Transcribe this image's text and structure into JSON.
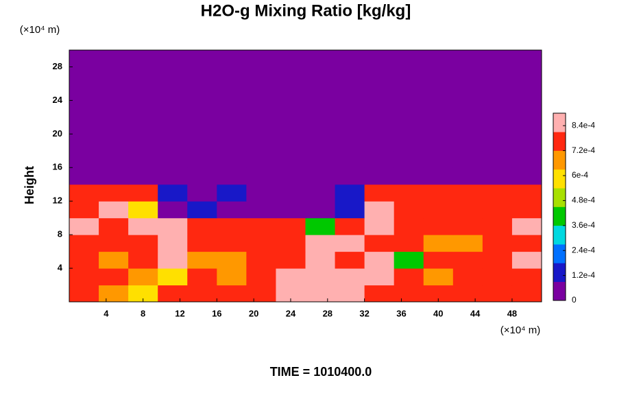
{
  "chart_data": {
    "type": "heatmap",
    "title": "H2O-g Mixing Ratio [kg/kg]",
    "ylabel": "Height",
    "yunit": "(×10⁴ m)",
    "xunit": "(×10⁴ m)",
    "footer": "TIME = 1010400.0",
    "x": [
      1.6,
      4.8,
      8,
      11.2,
      14.4,
      17.6,
      20.8,
      24,
      27.2,
      30.4,
      33.6,
      36.8,
      40,
      43.2,
      46.4,
      49.6
    ],
    "y": [
      1,
      3,
      5,
      7,
      9,
      11,
      13,
      15,
      17,
      19,
      21,
      23,
      25,
      27,
      29
    ],
    "z": [
      [
        0.0008,
        0.0007,
        0.0006,
        0.0008,
        0.0008,
        0.0008,
        0.0008,
        0.0009,
        0.0009,
        0.0009,
        0.0008,
        0.0008,
        0.0008,
        0.0008,
        0.0008,
        0.0008
      ],
      [
        0.0008,
        0.00075,
        0.0007,
        0.0006,
        0.0008,
        0.00065,
        0.0008,
        0.0009,
        0.0009,
        0.0009,
        0.00085,
        0.0008,
        0.0007,
        0.0008,
        0.00075,
        0.0008
      ],
      [
        0.00075,
        0.0007,
        0.00075,
        0.0009,
        0.0007,
        0.00065,
        0.0008,
        0.0008,
        0.0009,
        0.0008,
        0.0009,
        0.0004,
        0.0008,
        0.00075,
        0.0008,
        0.0009
      ],
      [
        0.0008,
        0.00075,
        0.0008,
        0.0009,
        0.0008,
        0.00075,
        0.0008,
        0.0008,
        0.0009,
        0.0009,
        0.0008,
        0.0008,
        0.0007,
        0.0007,
        0.0008,
        0.0008
      ],
      [
        0.00085,
        0.0008,
        0.0009,
        0.0009,
        0.0008,
        0.0008,
        0.0008,
        0.00075,
        0.0004,
        0.0008,
        0.0009,
        0.0008,
        0.00075,
        0.0008,
        0.0008,
        0.0009
      ],
      [
        0.0008,
        0.00085,
        0.0006,
        8e-05,
        0.0001,
        8e-05,
        5e-05,
        5e-05,
        5e-05,
        0.00015,
        0.0009,
        0.0008,
        0.0008,
        0.00078,
        0.0008,
        0.0008
      ],
      [
        0.0008,
        0.0008,
        0.0008,
        0.0001,
        5e-05,
        0.0001,
        8e-05,
        5e-05,
        8e-05,
        0.0001,
        0.0008,
        0.0008,
        0.0008,
        0.0008,
        0.0008,
        0.0008
      ],
      [
        0,
        0,
        0,
        0,
        0,
        0,
        0,
        0,
        0,
        0,
        0,
        0,
        0,
        0,
        0,
        0
      ],
      [
        0,
        0,
        0,
        0,
        0,
        0,
        0,
        0,
        0,
        0,
        0,
        0,
        0,
        0,
        0,
        0
      ],
      [
        0,
        0,
        0,
        0,
        0,
        0,
        0,
        0,
        0,
        0,
        0,
        0,
        0,
        0,
        0,
        0
      ],
      [
        0,
        0,
        0,
        0,
        0,
        0,
        0,
        0,
        0,
        0,
        0,
        0,
        0,
        0,
        0,
        0
      ],
      [
        0,
        0,
        0,
        0,
        0,
        0,
        0,
        0,
        0,
        0,
        0,
        0,
        0,
        0,
        0,
        0
      ],
      [
        0,
        0,
        0,
        0,
        0,
        0,
        0,
        0,
        0,
        0,
        0,
        0,
        0,
        0,
        0,
        0
      ],
      [
        0,
        0,
        0,
        0,
        0,
        0,
        0,
        0,
        0,
        0,
        0,
        0,
        0,
        0,
        0,
        0
      ],
      [
        0,
        0,
        0,
        0,
        0,
        0,
        0,
        0,
        0,
        0,
        0,
        0,
        0,
        0,
        0,
        0
      ]
    ],
    "xlim": [
      0,
      51.2
    ],
    "ylim": [
      0,
      30
    ],
    "xticks": [
      4,
      8,
      12,
      16,
      20,
      24,
      28,
      32,
      36,
      40,
      44,
      48
    ],
    "yticks": [
      4,
      8,
      12,
      16,
      20,
      24,
      28
    ],
    "clim": [
      0,
      0.0009
    ],
    "cticks": [
      0,
      {
        "value": 0.00012,
        "label": "1.2e-4"
      },
      {
        "value": 0.00024,
        "label": "2.4e-4"
      },
      {
        "value": 0.00036,
        "label": "3.6e-4"
      },
      {
        "value": 0.00048,
        "label": "4.8e-4"
      },
      {
        "value": 0.0006,
        "label": "6e-4"
      },
      {
        "value": 0.00072,
        "label": "7.2e-4"
      },
      {
        "value": 0.00084,
        "label": "8.4e-4"
      }
    ],
    "colormap": [
      "#7a00a0",
      "#1818c8",
      "#0070ff",
      "#00d8e0",
      "#00c800",
      "#a8e000",
      "#ffe000",
      "#ff9800",
      "#ff2810",
      "#ffb0b0"
    ]
  }
}
